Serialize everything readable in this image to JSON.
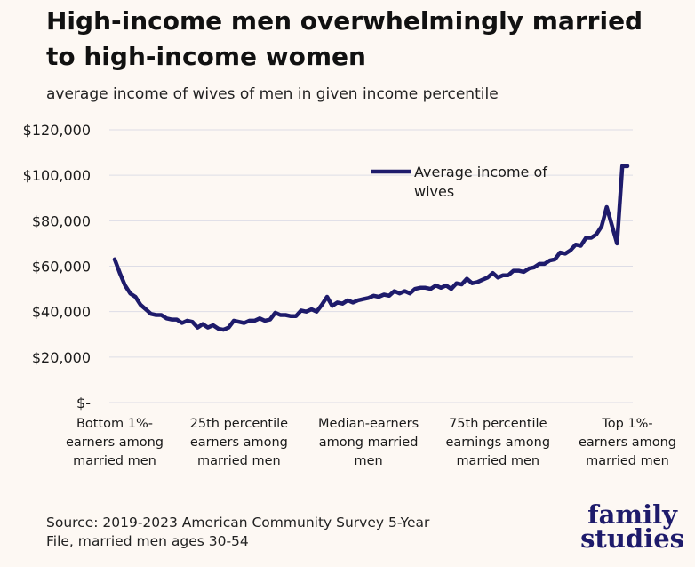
{
  "title": "High-income men overwhelmingly married to high-income women",
  "subtitle": "average income of wives of men in given income percentile",
  "source": {
    "line1": "Source: 2019-2023 American Community Survey 5-Year",
    "line2": "File, married men ages 30-54"
  },
  "brand": {
    "line1": "family",
    "line2": "studies"
  },
  "colors": {
    "line": "#1e1b6b",
    "grid": "#dddde6",
    "background": "#fdf8f3"
  },
  "chart_data": {
    "type": "line",
    "ylim": [
      0,
      120000
    ],
    "y_ticks": [
      0,
      20000,
      40000,
      60000,
      80000,
      100000,
      120000
    ],
    "y_tick_labels": [
      "$-",
      "$20,000",
      "$40,000",
      "$60,000",
      "$80,000",
      "$100,000",
      "$120,000"
    ],
    "x_category_labels": [
      {
        "x": 1,
        "lines": [
          "Bottom 1%-",
          "earners among",
          "married men"
        ]
      },
      {
        "x": 25,
        "lines": [
          "25th percentile",
          "earners among",
          "married men"
        ]
      },
      {
        "x": 50,
        "lines": [
          "Median-earners",
          "among married",
          "men"
        ]
      },
      {
        "x": 75,
        "lines": [
          "75th percentile",
          "earnings among",
          "married men"
        ]
      },
      {
        "x": 100,
        "lines": [
          "Top 1%-",
          "earners among",
          "married men"
        ]
      }
    ],
    "legend": {
      "position": "top-right",
      "label_lines": [
        "Average income of",
        "wives"
      ]
    },
    "series": [
      {
        "name": "Average income of wives",
        "x": [
          1,
          2,
          3,
          4,
          5,
          6,
          7,
          8,
          9,
          10,
          11,
          12,
          13,
          14,
          15,
          16,
          17,
          18,
          19,
          20,
          21,
          22,
          23,
          24,
          25,
          26,
          27,
          28,
          29,
          30,
          31,
          32,
          33,
          34,
          35,
          36,
          37,
          38,
          39,
          40,
          41,
          42,
          43,
          44,
          45,
          46,
          47,
          48,
          49,
          50,
          51,
          52,
          53,
          54,
          55,
          56,
          57,
          58,
          59,
          60,
          61,
          62,
          63,
          64,
          65,
          66,
          67,
          68,
          69,
          70,
          71,
          72,
          73,
          74,
          75,
          76,
          77,
          78,
          79,
          80,
          81,
          82,
          83,
          84,
          85,
          86,
          87,
          88,
          89,
          90,
          91,
          92,
          93,
          94,
          95,
          96,
          97,
          98,
          99,
          100
        ],
        "values": [
          63000,
          57000,
          51500,
          48000,
          46500,
          43000,
          41000,
          39000,
          38500,
          38500,
          37000,
          36500,
          36500,
          35000,
          36000,
          35500,
          33000,
          34500,
          33000,
          34000,
          32500,
          32000,
          33000,
          36000,
          35500,
          35000,
          36000,
          36000,
          37000,
          36000,
          36500,
          39500,
          38500,
          38500,
          38000,
          38000,
          40500,
          40000,
          41000,
          40000,
          43000,
          46500,
          42500,
          44000,
          43500,
          45000,
          44000,
          45000,
          45500,
          46000,
          47000,
          46500,
          47500,
          47000,
          49000,
          48000,
          49000,
          48000,
          50000,
          50500,
          50500,
          50000,
          51500,
          50500,
          51500,
          50000,
          52500,
          52000,
          54500,
          52500,
          53000,
          54000,
          55000,
          57000,
          55000,
          56000,
          56000,
          58000,
          58000,
          57500,
          59000,
          59500,
          61000,
          61000,
          62500,
          63000,
          66000,
          65500,
          67000,
          69500,
          69000,
          72500,
          72500,
          74000,
          77500,
          86000,
          78000,
          70000,
          104000,
          104000
        ]
      }
    ]
  }
}
